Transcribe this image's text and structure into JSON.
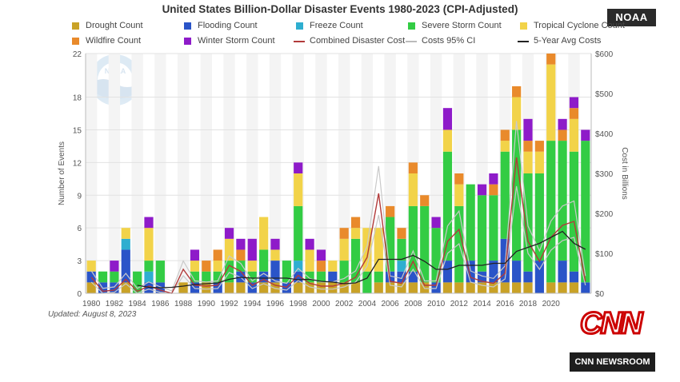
{
  "title": "United States Billion-Dollar Disaster Events 1980-2023 (CPI-Adjusted)",
  "badge": "NOAA",
  "watermark": "NOAA",
  "updated": "Updated: August 8, 2023",
  "broadcaster": {
    "logo": "CNN",
    "segment": "CNN NEWSROOM"
  },
  "legend": [
    {
      "label": "Drought Count",
      "color": "#c9a227",
      "kind": "box"
    },
    {
      "label": "Flooding Count",
      "color": "#2a54c8",
      "kind": "box"
    },
    {
      "label": "Freeze Count",
      "color": "#2eaed0",
      "kind": "box"
    },
    {
      "label": "Severe Storm Count",
      "color": "#33cc44",
      "kind": "box"
    },
    {
      "label": "Tropical Cyclone Count",
      "color": "#f2d349",
      "kind": "box"
    },
    {
      "label": "Wildfire Count",
      "color": "#e98a2b",
      "kind": "box"
    },
    {
      "label": "Winter Storm Count",
      "color": "#8e1bc9",
      "kind": "box"
    },
    {
      "label": "Combined Disaster Cost",
      "color": "#b23a3a",
      "kind": "line"
    },
    {
      "label": "Costs 95% CI",
      "color": "#bbbbbb",
      "kind": "line"
    },
    {
      "label": "5-Year Avg Costs",
      "color": "#222222",
      "kind": "line"
    }
  ],
  "chart_data": {
    "type": "bar",
    "stacked": true,
    "title": "United States Billion-Dollar Disaster Events 1980-2023 (CPI-Adjusted)",
    "ylabel": "Number of Events",
    "y2label": "Cost in Billions",
    "ylim": [
      0,
      22
    ],
    "y2lim": [
      0,
      600
    ],
    "yticks": [
      "0",
      "3",
      "6",
      "9",
      "12",
      "15",
      "18",
      "22"
    ],
    "y2ticks": [
      "$0",
      "$100",
      "$200",
      "$300",
      "$400",
      "$500",
      "$600"
    ],
    "xticks": [
      "1980",
      "1982",
      "1984",
      "1986",
      "1988",
      "1990",
      "1992",
      "1994",
      "1996",
      "1998",
      "2000",
      "2002",
      "2004",
      "2006",
      "2008",
      "2010",
      "2012",
      "2014",
      "2016",
      "2018",
      "2020"
    ],
    "years": [
      1980,
      1981,
      1982,
      1983,
      1984,
      1985,
      1986,
      1987,
      1988,
      1989,
      1990,
      1991,
      1992,
      1993,
      1994,
      1995,
      1996,
      1997,
      1998,
      1999,
      2000,
      2001,
      2002,
      2003,
      2004,
      2005,
      2006,
      2007,
      2008,
      2009,
      2010,
      2011,
      2012,
      2013,
      2014,
      2015,
      2016,
      2017,
      2018,
      2019,
      2020,
      2021,
      2022,
      2023
    ],
    "series": [
      {
        "name": "Drought Count",
        "color": "#c9a227",
        "values": [
          1,
          0,
          0,
          1,
          0,
          0,
          0,
          0,
          1,
          0,
          1,
          0,
          1,
          1,
          0,
          1,
          1,
          0,
          1,
          1,
          1,
          1,
          1,
          1,
          0,
          1,
          1,
          1,
          1,
          1,
          0,
          1,
          1,
          1,
          1,
          1,
          1,
          1,
          1,
          0,
          1,
          1,
          1,
          0
        ]
      },
      {
        "name": "Flooding Count",
        "color": "#2a54c8",
        "values": [
          1,
          1,
          1,
          3,
          0,
          1,
          1,
          0,
          0,
          1,
          0,
          1,
          0,
          1,
          1,
          1,
          2,
          1,
          1,
          0,
          0,
          1,
          0,
          0,
          0,
          0,
          1,
          1,
          1,
          0,
          1,
          2,
          0,
          2,
          1,
          2,
          4,
          2,
          1,
          3,
          0,
          2,
          1,
          1
        ]
      },
      {
        "name": "Freeze Count",
        "color": "#2eaed0",
        "values": [
          0,
          0,
          0,
          1,
          0,
          1,
          0,
          0,
          0,
          0,
          0,
          0,
          0,
          0,
          0,
          0,
          0,
          0,
          1,
          0,
          0,
          0,
          0,
          0,
          0,
          0,
          0,
          1,
          0,
          0,
          0,
          0,
          0,
          0,
          0,
          0,
          0,
          0,
          0,
          0,
          0,
          0,
          0,
          0
        ]
      },
      {
        "name": "Severe Storm Count",
        "color": "#33cc44",
        "values": [
          0,
          1,
          1,
          0,
          2,
          1,
          2,
          0,
          0,
          1,
          1,
          1,
          2,
          1,
          1,
          2,
          0,
          2,
          5,
          1,
          1,
          0,
          2,
          4,
          2,
          1,
          5,
          2,
          6,
          7,
          5,
          10,
          7,
          7,
          7,
          6,
          8,
          12,
          9,
          8,
          13,
          11,
          11,
          13
        ]
      },
      {
        "name": "Tropical Cyclone Count",
        "color": "#f2d349",
        "values": [
          1,
          0,
          0,
          1,
          0,
          3,
          0,
          0,
          0,
          1,
          0,
          1,
          2,
          0,
          1,
          3,
          1,
          0,
          3,
          2,
          0,
          1,
          2,
          1,
          4,
          4,
          0,
          0,
          3,
          0,
          0,
          2,
          2,
          0,
          0,
          0,
          1,
          3,
          2,
          2,
          7,
          0,
          3,
          0
        ]
      },
      {
        "name": "Wildfire Count",
        "color": "#e98a2b",
        "values": [
          0,
          0,
          0,
          0,
          0,
          0,
          0,
          0,
          0,
          0,
          1,
          1,
          0,
          1,
          0,
          0,
          0,
          0,
          0,
          0,
          1,
          0,
          1,
          1,
          0,
          0,
          1,
          1,
          1,
          1,
          0,
          0,
          1,
          0,
          0,
          1,
          1,
          1,
          1,
          1,
          1,
          1,
          1,
          0
        ]
      },
      {
        "name": "Winter Storm Count",
        "color": "#8e1bc9",
        "values": [
          0,
          0,
          1,
          0,
          0,
          1,
          0,
          0,
          0,
          1,
          0,
          0,
          1,
          1,
          2,
          0,
          1,
          0,
          1,
          1,
          1,
          0,
          0,
          0,
          0,
          0,
          0,
          0,
          0,
          0,
          1,
          2,
          0,
          0,
          1,
          1,
          0,
          0,
          2,
          0,
          0,
          1,
          1,
          1
        ]
      }
    ],
    "lines": [
      {
        "name": "Combined Disaster Cost",
        "color": "#b23a3a",
        "values": [
          40,
          5,
          8,
          35,
          5,
          18,
          8,
          0,
          60,
          20,
          18,
          20,
          70,
          55,
          20,
          35,
          20,
          15,
          45,
          25,
          18,
          18,
          25,
          40,
          90,
          250,
          30,
          25,
          80,
          20,
          20,
          130,
          160,
          40,
          30,
          25,
          50,
          340,
          130,
          80,
          140,
          170,
          180,
          30
        ]
      },
      {
        "name": "5-Year Avg Costs",
        "color": "#222222",
        "values": [
          null,
          null,
          null,
          null,
          20,
          15,
          14,
          15,
          18,
          22,
          24,
          26,
          35,
          40,
          38,
          38,
          38,
          38,
          34,
          35,
          30,
          28,
          24,
          26,
          38,
          85,
          85,
          85,
          95,
          80,
          60,
          60,
          70,
          70,
          70,
          75,
          75,
          105,
          115,
          125,
          140,
          155,
          125,
          110
        ]
      }
    ]
  }
}
